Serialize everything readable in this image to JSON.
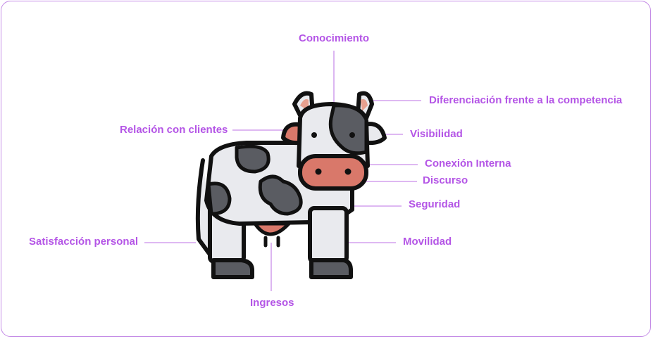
{
  "theme": {
    "label_color": "#b455e6",
    "line_color": "#c98ee9",
    "border_color": "#c48be6"
  },
  "icon": "cow-icon",
  "labels": {
    "conocimiento": "Conocimiento",
    "diferenciacion": "Diferenciación frente a la competencia",
    "relacion": "Relación con clientes",
    "visibilidad": "Visibilidad",
    "conexion": "Conexión Interna",
    "discurso": "Discurso",
    "seguridad": "Seguridad",
    "satisfaccion": "Satisfacción personal",
    "movilidad": "Movilidad",
    "ingresos": "Ingresos"
  }
}
